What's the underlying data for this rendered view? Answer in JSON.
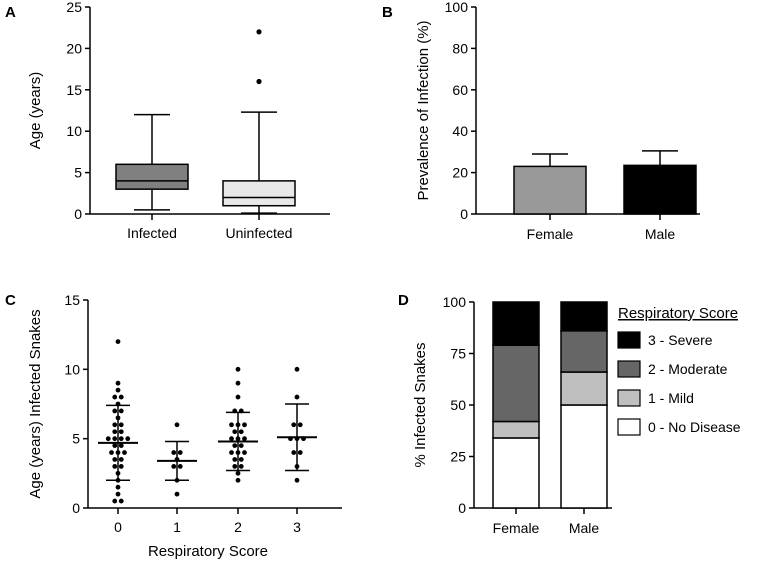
{
  "chart_data": [
    {
      "panel": "A",
      "type": "box",
      "ylabel": "Age (years)",
      "xlabel": "",
      "ylim": [
        0,
        25
      ],
      "yticks": [
        0,
        5,
        10,
        15,
        20,
        25
      ],
      "colors": {
        "fill": [
          "#808080",
          "#e8e8e8"
        ]
      },
      "groups": [
        {
          "name": "Infected",
          "min": 0.5,
          "q1": 3,
          "median": 4,
          "q3": 6,
          "max": 12,
          "outliers": []
        },
        {
          "name": "Uninfected",
          "min": 0.1,
          "q1": 1,
          "median": 2,
          "q3": 4,
          "max": 12.3,
          "outliers": [
            16,
            22
          ]
        }
      ]
    },
    {
      "panel": "B",
      "type": "bar",
      "ylabel": "Prevalence of Infection (%)",
      "xlabel": "",
      "ylim": [
        0,
        100
      ],
      "yticks": [
        0,
        20,
        40,
        60,
        80,
        100
      ],
      "categories": [
        "Female",
        "Male"
      ],
      "values": [
        23,
        23.5
      ],
      "errors": [
        6,
        7
      ],
      "colors": [
        "#999999",
        "#000000"
      ]
    },
    {
      "panel": "C",
      "type": "scatter",
      "ylabel": "Age (years) Infected Snakes",
      "xlabel": "Respiratory Score",
      "ylim": [
        0,
        15
      ],
      "yticks": [
        0,
        5,
        10,
        15
      ],
      "categories": [
        "0",
        "1",
        "2",
        "3"
      ],
      "groups": [
        {
          "score": "0",
          "mean": 4.7,
          "sd_low": 2.0,
          "sd_high": 7.4,
          "points": [
            12,
            9,
            8.5,
            8,
            8,
            7.5,
            7,
            7,
            6.5,
            6,
            6,
            5.5,
            5.5,
            5,
            5,
            5,
            5,
            4.5,
            4.5,
            4,
            4,
            4,
            3.5,
            3.5,
            3,
            3,
            2.5,
            2,
            1.5,
            1,
            0.5,
            0.5
          ]
        },
        {
          "score": "1",
          "mean": 3.4,
          "sd_low": 2.0,
          "sd_high": 4.8,
          "points": [
            6,
            4,
            4,
            3.5,
            3,
            3,
            2,
            1
          ]
        },
        {
          "score": "2",
          "mean": 4.8,
          "sd_low": 2.7,
          "sd_high": 6.9,
          "points": [
            10,
            9,
            8,
            7,
            7,
            6,
            6,
            6,
            5.5,
            5.5,
            5,
            5,
            5,
            4.5,
            4.5,
            4,
            4,
            4,
            3.5,
            3.5,
            3,
            3,
            2.5,
            2
          ]
        },
        {
          "score": "3",
          "mean": 5.1,
          "sd_low": 2.7,
          "sd_high": 7.5,
          "points": [
            10,
            8,
            6,
            6,
            5,
            5,
            5,
            4,
            4,
            3,
            2
          ]
        }
      ]
    },
    {
      "panel": "D",
      "type": "stacked_bar",
      "ylabel": "% Infected Snakes",
      "xlabel": "",
      "ylim": [
        0,
        100
      ],
      "yticks": [
        0,
        25,
        50,
        75,
        100
      ],
      "categories": [
        "Female",
        "Male"
      ],
      "legend_title": "Respiratory Score",
      "series": [
        {
          "name": "0 - No Disease",
          "color": "#ffffff",
          "values": [
            34,
            50
          ]
        },
        {
          "name": "1 - Mild",
          "color": "#bfbfbf",
          "values": [
            8,
            16
          ]
        },
        {
          "name": "2 - Moderate",
          "color": "#666666",
          "values": [
            37,
            20
          ]
        },
        {
          "name": "3 - Severe",
          "color": "#000000",
          "values": [
            21,
            14
          ]
        }
      ]
    }
  ]
}
